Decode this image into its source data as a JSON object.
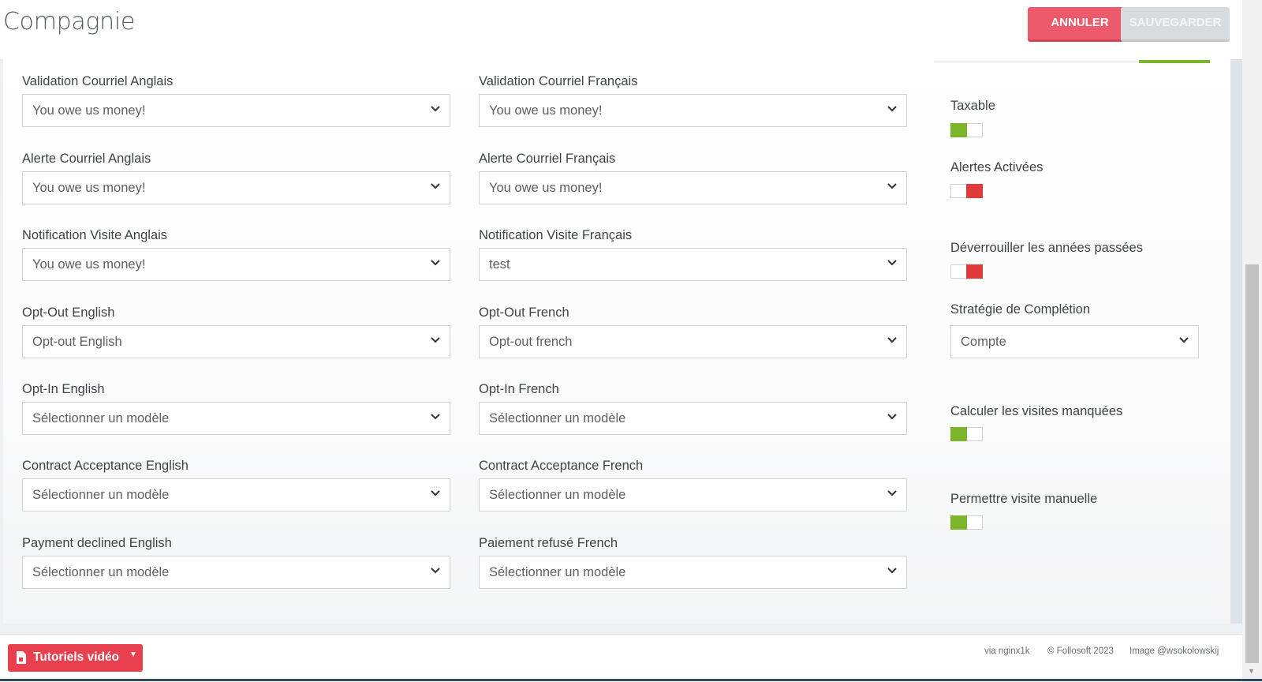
{
  "header": {
    "title": "Compagnie",
    "cancel_label": "ANNULER",
    "save_label": "SAUVEGARDER"
  },
  "left_column": [
    {
      "label": "Validation Courriel Anglais",
      "value": "You owe us money!"
    },
    {
      "label": "Alerte Courriel Anglais",
      "value": "You owe us money!"
    },
    {
      "label": "Notification Visite Anglais",
      "value": "You owe us money!"
    },
    {
      "label": "Opt-Out English",
      "value": "Opt-out English"
    },
    {
      "label": "Opt-In English",
      "value": "Sélectionner un modèle"
    },
    {
      "label": "Contract Acceptance English",
      "value": "Sélectionner un modèle"
    },
    {
      "label": "Payment declined English",
      "value": "Sélectionner un modèle"
    }
  ],
  "middle_column": [
    {
      "label": "Validation Courriel Français",
      "value": "You owe us money!"
    },
    {
      "label": "Alerte Courriel Français",
      "value": "You owe us money!"
    },
    {
      "label": "Notification Visite Français",
      "value": "test"
    },
    {
      "label": "Opt-Out French",
      "value": "Opt-out french"
    },
    {
      "label": "Opt-In French",
      "value": "Sélectionner un modèle"
    },
    {
      "label": "Contract Acceptance French",
      "value": "Sélectionner un modèle"
    },
    {
      "label": "Paiement refusé French",
      "value": "Sélectionner un modèle"
    }
  ],
  "right_column": {
    "taxable": {
      "label": "Taxable",
      "state": "on"
    },
    "alerts": {
      "label": "Alertes Activées",
      "state": "off"
    },
    "unlock_years": {
      "label": "Déverrouiller les années passées",
      "state": "off"
    },
    "strategy": {
      "label": "Stratégie de Complétion",
      "value": "Compte"
    },
    "missed_visits": {
      "label": "Calculer les visites manquées",
      "state": "on"
    },
    "manual_visit": {
      "label": "Permettre visite manuelle",
      "state": "on"
    }
  },
  "footer": {
    "tutorials_label": "Tutoriels vidéo",
    "server": "via nginx1k",
    "copyright": "© Follosoft 2023",
    "image_credit": "Image @wsokolowskij"
  },
  "colors": {
    "accent_red": "#ec5a6b",
    "toggle_on": "#7bb52b",
    "toggle_off": "#e03a3a"
  }
}
